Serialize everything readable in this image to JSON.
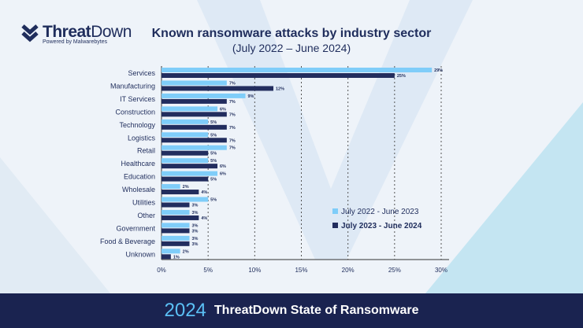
{
  "brand": {
    "name_bold": "Threat",
    "name_rest": "Down",
    "tagline": "Powered by Malwarebytes",
    "colors": {
      "navy": "#1f2d5c",
      "light": "#7fcdf9"
    }
  },
  "footer": {
    "year": "2024",
    "text": "ThreatDown State of Ransomware"
  },
  "chart_data": {
    "type": "bar",
    "orientation": "horizontal",
    "title": "Known ransomware attacks by industry sector",
    "subtitle": "(July 2022 – June 2024)",
    "categories": [
      "Services",
      "Manufacturing",
      "IT Services",
      "Construction",
      "Technology",
      "Logistics",
      "Retail",
      "Healthcare",
      "Education",
      "Wholesale",
      "Utilities",
      "Other",
      "Government",
      "Food & Beverage",
      "Unknown"
    ],
    "series": [
      {
        "name": "July 2022 - June 2023",
        "color": "#7fcdf9",
        "values": [
          29,
          7,
          9,
          6,
          5,
          5,
          7,
          5,
          6,
          2,
          5,
          3,
          3,
          3,
          2
        ]
      },
      {
        "name": "July 2023 - June 2024",
        "color": "#222d5e",
        "values": [
          25,
          12,
          7,
          7,
          7,
          7,
          5,
          6,
          5,
          4,
          3,
          4,
          3,
          3,
          1
        ]
      }
    ],
    "xlim": [
      0,
      30
    ],
    "xticks": [
      "0%",
      "5%",
      "10%",
      "15%",
      "20%",
      "25%",
      "30%"
    ],
    "grid": "vertical dashed",
    "legend": "right"
  }
}
